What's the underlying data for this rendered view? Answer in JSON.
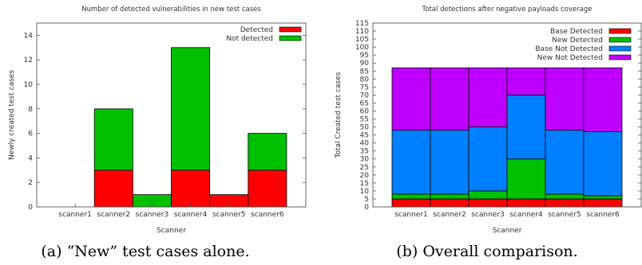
{
  "chart_data": [
    {
      "type": "bar",
      "stacked": true,
      "title": "Number of detected vulnerabilities in new test cases",
      "xlabel": "Scanner",
      "ylabel": "Newly created test cases",
      "ylim": [
        0,
        15
      ],
      "yticks": [
        0,
        2,
        4,
        6,
        8,
        10,
        12,
        14
      ],
      "categories": [
        "scanner1",
        "scanner2",
        "scanner3",
        "scanner4",
        "scanner5",
        "scanner6"
      ],
      "series": [
        {
          "name": "Detected",
          "color": "#ff0000",
          "values": [
            0,
            3,
            0,
            3,
            1,
            3
          ]
        },
        {
          "name": "Not detected",
          "color": "#00c000",
          "values": [
            0,
            5,
            1,
            10,
            0,
            3
          ]
        }
      ],
      "legend": "top-right",
      "caption": "(a)  “New” test cases alone."
    },
    {
      "type": "bar",
      "stacked": true,
      "title": "Total detections after negative payloads coverage",
      "xlabel": "Scanner",
      "ylabel": "Total Created test cases",
      "ylim": [
        0,
        115
      ],
      "yticks": [
        0,
        5,
        10,
        15,
        20,
        25,
        30,
        35,
        40,
        45,
        50,
        55,
        60,
        65,
        70,
        75,
        80,
        85,
        90,
        95,
        100,
        105,
        110,
        115
      ],
      "categories": [
        "scanner1",
        "scanner2",
        "scanner3",
        "scanner4",
        "scanner5",
        "scanner6"
      ],
      "series": [
        {
          "name": "Base Detected",
          "color": "#ff0000",
          "values": [
            5,
            5,
            5,
            5,
            5,
            5
          ]
        },
        {
          "name": "New Detected",
          "color": "#00c000",
          "values": [
            3,
            3,
            5,
            25,
            3,
            2
          ]
        },
        {
          "name": "Base Not Detected",
          "color": "#0080ff",
          "values": [
            40,
            40,
            40,
            40,
            40,
            40
          ]
        },
        {
          "name": "New Not Detected",
          "color": "#c000ff",
          "values": [
            39,
            39,
            37,
            17,
            39,
            40
          ]
        }
      ],
      "legend": "top-right",
      "caption": "(b)  Overall comparison."
    }
  ]
}
